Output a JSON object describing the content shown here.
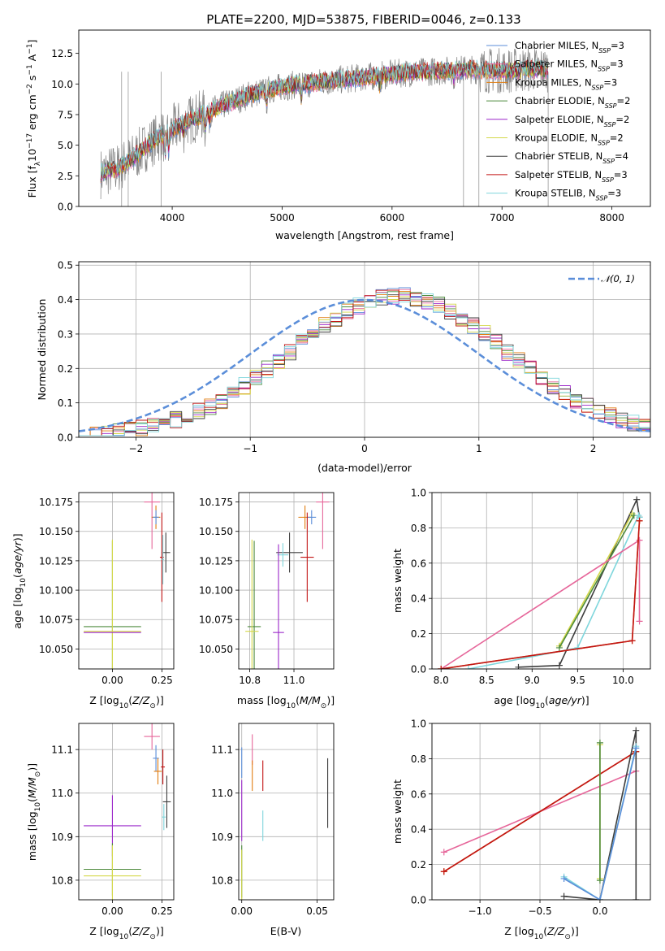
{
  "figure_title": "PLATE=2200, MJD=53875, FIBERID=0046, z=0.133",
  "colors": {
    "Chabrier MILES": "#5b8ed9",
    "Salpeter MILES": "#e6669a",
    "Kroupa MILES": "#e07d10",
    "Chabrier ELODIE": "#4d8a3c",
    "Salpeter ELODIE": "#9b27c9",
    "Kroupa ELODIE": "#d4d84a",
    "Chabrier STELIB": "#3d3d3d",
    "Salpeter STELIB": "#c21414",
    "Kroupa STELIB": "#7fd6dc",
    "data": "#808080",
    "normal": "#5b8ed9"
  },
  "chart_data": [
    {
      "id": "spectrum",
      "type": "line",
      "xlabel": "wavelength [Angstrom, rest frame]",
      "ylabel": "Flux [f_λ 10^-17 erg cm^-2 s^-1 A^-1]",
      "xlim": [
        3150,
        8350
      ],
      "ylim": [
        0,
        14.4
      ],
      "xticks": [
        4000,
        5000,
        6000,
        7000,
        8000
      ],
      "yticks": [
        0.0,
        2.5,
        5.0,
        7.5,
        10.0,
        12.5
      ],
      "grid": false,
      "legend_position": "right",
      "continuum_anchors": {
        "x": [
          3350,
          3500,
          3650,
          3800,
          3950,
          4100,
          4300,
          4500,
          4700,
          4900,
          5100,
          5300,
          5500,
          5700,
          5900,
          6100,
          6300,
          6500,
          6700,
          6900,
          7100,
          7300,
          7420
        ],
        "y": [
          2.7,
          3.1,
          4.0,
          5.2,
          6.0,
          6.8,
          7.6,
          8.4,
          9.1,
          9.6,
          9.9,
          10.1,
          10.3,
          10.5,
          10.7,
          10.9,
          11.0,
          11.1,
          11.2,
          11.1,
          11.1,
          11.2,
          11.2
        ]
      },
      "series": [
        {
          "name": "Chabrier MILES",
          "label": "Chabrier MILES, N_SSP=3"
        },
        {
          "name": "Salpeter MILES",
          "label": "Salpeter MILES, N_SSP=3"
        },
        {
          "name": "Kroupa MILES",
          "label": "Kroupa MILES, N_SSP=3"
        },
        {
          "name": "Chabrier ELODIE",
          "label": "Chabrier ELODIE, N_SSP=2"
        },
        {
          "name": "Salpeter ELODIE",
          "label": "Salpeter ELODIE, N_SSP=2"
        },
        {
          "name": "Kroupa ELODIE",
          "label": "Kroupa ELODIE, N_SSP=2"
        },
        {
          "name": "Chabrier STELIB",
          "label": "Chabrier STELIB, N_SSP=4"
        },
        {
          "name": "Salpeter STELIB",
          "label": "Salpeter STELIB, N_SSP=3"
        },
        {
          "name": "Kroupa STELIB",
          "label": "Kroupa STELIB, N_SSP=3"
        }
      ]
    },
    {
      "id": "residual_histogram",
      "type": "bar",
      "xlabel": "(data-model)/error",
      "ylabel": "Normed distribution",
      "xlim": [
        -2.5,
        2.5
      ],
      "ylim": [
        0,
        0.51
      ],
      "xticks": [
        -2,
        -1,
        0,
        1,
        2
      ],
      "yticks": [
        0.0,
        0.1,
        0.2,
        0.3,
        0.4,
        0.5
      ],
      "grid": true,
      "legend_position": "top-right",
      "normal_label": "𝒩(0, 1)",
      "bin_width": 0.1,
      "bin_start": -2.5
    },
    {
      "id": "age_vs_Z",
      "type": "scatter",
      "xlabel": "Z [log10(Z/Z⊙)]",
      "ylabel": "age  [log10(age/yr)]",
      "xlim": [
        -0.17,
        0.31
      ],
      "ylim": [
        10.033,
        10.183
      ],
      "xticks": [
        0.0,
        0.25
      ],
      "xticklabels": [
        "0.00",
        "0.25"
      ],
      "yticks": [
        10.05,
        10.075,
        10.1,
        10.125,
        10.15,
        10.175
      ],
      "grid": true,
      "points": [
        {
          "name": "Salpeter MILES",
          "x": 0.2,
          "y": 10.175,
          "xerr": 0.04,
          "yerr": 0.04
        },
        {
          "name": "Kroupa MILES",
          "x": 0.22,
          "y": 10.162,
          "xerr": 0.022,
          "yerr": 0.01
        },
        {
          "name": "Chabrier MILES",
          "x": 0.22,
          "y": 10.162,
          "xerr": 0.015,
          "yerr": 0.006
        },
        {
          "name": "Chabrier STELIB",
          "x": 0.27,
          "y": 10.132,
          "xerr": 0.022,
          "yerr": 0.017
        },
        {
          "name": "Salpeter STELIB",
          "x": 0.25,
          "y": 10.128,
          "xerr": 0.01,
          "yerr": 0.038
        },
        {
          "name": "Kroupa STELIB",
          "x": 0.255,
          "y": 10.126,
          "xerr": 0.005,
          "yerr": 0.021
        },
        {
          "name": "Chabrier ELODIE",
          "x": 0.0,
          "y": 10.069,
          "xerr": 0.145,
          "yerr": 0.073
        },
        {
          "name": "Kroupa ELODIE",
          "x": 0.0,
          "y": 10.065,
          "xerr": 0.145,
          "yerr": 0.078
        },
        {
          "name": "Salpeter ELODIE",
          "x": 0.0,
          "y": 10.064,
          "xerr": 0.145,
          "yerr": 0.0
        }
      ]
    },
    {
      "id": "age_vs_mass",
      "type": "scatter",
      "xlabel": "mass [log10(M/M⊙)]",
      "ylabel": "",
      "xlim": [
        10.75,
        11.18
      ],
      "ylim": [
        10.033,
        10.183
      ],
      "xticks": [
        10.8,
        11.0
      ],
      "yticks": [
        10.05,
        10.075,
        10.1,
        10.125,
        10.15,
        10.175
      ],
      "grid": true,
      "points": [
        {
          "name": "Salpeter MILES",
          "x": 11.13,
          "y": 10.175,
          "xerr": 0.03,
          "yerr": 0.04
        },
        {
          "name": "Kroupa MILES",
          "x": 11.05,
          "y": 10.162,
          "xerr": 0.03,
          "yerr": 0.01
        },
        {
          "name": "Chabrier MILES",
          "x": 11.08,
          "y": 10.162,
          "xerr": 0.02,
          "yerr": 0.006
        },
        {
          "name": "Chabrier STELIB",
          "x": 10.98,
          "y": 10.132,
          "xerr": 0.06,
          "yerr": 0.017
        },
        {
          "name": "Salpeter STELIB",
          "x": 11.06,
          "y": 10.128,
          "xerr": 0.03,
          "yerr": 0.038
        },
        {
          "name": "Kroupa STELIB",
          "x": 10.95,
          "y": 10.13,
          "xerr": 0.025,
          "yerr": 0.01
        },
        {
          "name": "Chabrier ELODIE",
          "x": 10.82,
          "y": 10.069,
          "xerr": 0.03,
          "yerr": 0.073
        },
        {
          "name": "Kroupa ELODIE",
          "x": 10.81,
          "y": 10.065,
          "xerr": 0.03,
          "yerr": 0.078
        },
        {
          "name": "Salpeter ELODIE",
          "x": 10.93,
          "y": 10.064,
          "xerr": 0.025,
          "yerr": 0.075
        }
      ]
    },
    {
      "id": "mass_weight_vs_age",
      "type": "line",
      "xlabel": "age  [log10(age/yr)]",
      "ylabel": "mass weight",
      "xlim": [
        7.9,
        10.3
      ],
      "ylim": [
        0,
        1.0
      ],
      "xticks": [
        8.0,
        8.5,
        9.0,
        9.5,
        10.0
      ],
      "yticks": [
        0.0,
        0.2,
        0.4,
        0.6,
        0.8,
        1.0
      ],
      "grid": true,
      "series": [
        {
          "name": "Chabrier STELIB",
          "x": [
            8.85,
            9.3,
            10.15,
            10.18
          ],
          "y": [
            0.01,
            0.02,
            0.96,
            0.86
          ]
        },
        {
          "name": "Kroupa ELODIE",
          "x": [
            9.3,
            10.1
          ],
          "y": [
            0.13,
            0.88
          ]
        },
        {
          "name": "Chabrier ELODIE",
          "x": [
            9.3,
            10.12
          ],
          "y": [
            0.12,
            0.87
          ]
        },
        {
          "name": "Kroupa STELIB",
          "x": [
            8.3,
            9.5,
            10.17,
            10.18
          ],
          "y": [
            0.0,
            0.12,
            0.87,
            0.86
          ]
        },
        {
          "name": "Salpeter MILES",
          "x": [
            8.0,
            10.18,
            10.18
          ],
          "y": [
            0.0,
            0.73,
            0.27
          ]
        },
        {
          "name": "Kroupa MILES",
          "x": [
            8.0,
            10.1,
            10.18
          ],
          "y": [
            0.0,
            0.16,
            0.84
          ]
        },
        {
          "name": "Salpeter STELIB",
          "x": [
            8.0,
            10.1,
            10.18
          ],
          "y": [
            0.0,
            0.16,
            0.84
          ]
        }
      ]
    },
    {
      "id": "mass_vs_Z",
      "type": "scatter",
      "xlabel": "Z [log10(Z/Z⊙)]",
      "ylabel": "mass [log10(M/M⊙)]",
      "xlim": [
        -0.17,
        0.31
      ],
      "ylim": [
        10.755,
        11.16
      ],
      "xticks": [
        0.0,
        0.25
      ],
      "xticklabels": [
        "0.00",
        "0.25"
      ],
      "yticks": [
        10.8,
        10.9,
        11.0,
        11.1
      ],
      "grid": true,
      "points": [
        {
          "name": "Salpeter MILES",
          "x": 0.2,
          "y": 11.13,
          "xerr": 0.04,
          "yerr": 0.03
        },
        {
          "name": "Chabrier MILES",
          "x": 0.22,
          "y": 11.08,
          "xerr": 0.015,
          "yerr": 0.03
        },
        {
          "name": "Kroupa MILES",
          "x": 0.23,
          "y": 11.05,
          "xerr": 0.02,
          "yerr": 0.03
        },
        {
          "name": "Salpeter STELIB",
          "x": 0.255,
          "y": 11.06,
          "xerr": 0.01,
          "yerr": 0.04
        },
        {
          "name": "Chabrier STELIB",
          "x": 0.275,
          "y": 10.98,
          "xerr": 0.02,
          "yerr": 0.06
        },
        {
          "name": "Kroupa STELIB",
          "x": 0.26,
          "y": 10.945,
          "xerr": 0.01,
          "yerr": 0.03
        },
        {
          "name": "Salpeter ELODIE",
          "x": 0.0,
          "y": 10.925,
          "xerr": 0.145,
          "yerr": 0.07
        },
        {
          "name": "Chabrier ELODIE",
          "x": 0.0,
          "y": 10.825,
          "xerr": 0.145,
          "yerr": 0.06
        },
        {
          "name": "Kroupa ELODIE",
          "x": 0.0,
          "y": 10.81,
          "xerr": 0.145,
          "yerr": 0.07
        }
      ]
    },
    {
      "id": "mass_vs_EBV",
      "type": "scatter",
      "xlabel": "E(B-V)",
      "ylabel": "",
      "xlim": [
        -0.002,
        0.061
      ],
      "ylim": [
        10.755,
        11.16
      ],
      "xticks": [
        0.0,
        0.05
      ],
      "xticklabels": [
        "0.00",
        "0.05"
      ],
      "yticks": [
        10.8,
        10.9,
        11.0,
        11.1
      ],
      "grid": true,
      "points": [
        {
          "name": "Chabrier MILES",
          "x": 0.0,
          "y": 11.07,
          "xerr": 0,
          "yerr": 0.035
        },
        {
          "name": "Salpeter MILES",
          "x": 0.007,
          "y": 11.1,
          "xerr": 0,
          "yerr": 0.035
        },
        {
          "name": "Kroupa MILES",
          "x": 0.007,
          "y": 11.04,
          "xerr": 0,
          "yerr": 0.035
        },
        {
          "name": "Salpeter STELIB",
          "x": 0.014,
          "y": 11.04,
          "xerr": 0,
          "yerr": 0.035
        },
        {
          "name": "Kroupa STELIB",
          "x": 0.014,
          "y": 10.925,
          "xerr": 0,
          "yerr": 0.035
        },
        {
          "name": "Salpeter ELODIE",
          "x": 0.0,
          "y": 10.96,
          "xerr": 0,
          "yerr": 0.07
        },
        {
          "name": "Chabrier ELODIE",
          "x": 0.0,
          "y": 10.82,
          "xerr": 0,
          "yerr": 0.06
        },
        {
          "name": "Kroupa ELODIE",
          "x": 0.0,
          "y": 10.81,
          "xerr": 0,
          "yerr": 0.06
        },
        {
          "name": "Chabrier STELIB",
          "x": 0.057,
          "y": 11.0,
          "xerr": 0,
          "yerr": 0.08
        }
      ]
    },
    {
      "id": "mass_weight_vs_Z",
      "type": "line",
      "xlabel": "Z [log10(Z/Z⊙)]",
      "ylabel": "mass weight",
      "xlim": [
        -1.4,
        0.42
      ],
      "ylim": [
        0,
        1.0
      ],
      "xticks": [
        -1.0,
        -0.5,
        0.0
      ],
      "yticks": [
        0.0,
        0.2,
        0.4,
        0.6,
        0.8,
        1.0
      ],
      "grid": true,
      "series": [
        {
          "name": "Salpeter MILES",
          "x": [
            -1.3,
            0.3
          ],
          "y": [
            0.27,
            0.73
          ]
        },
        {
          "name": "Kroupa MILES",
          "x": [
            -1.3,
            0.3
          ],
          "y": [
            0.16,
            0.84
          ]
        },
        {
          "name": "Salpeter STELIB",
          "x": [
            -1.3,
            0.3
          ],
          "y": [
            0.16,
            0.84
          ]
        },
        {
          "name": "Kroupa ELODIE",
          "x": [
            0.0,
            0.0
          ],
          "y": [
            0.12,
            0.88
          ]
        },
        {
          "name": "Chabrier ELODIE",
          "x": [
            0.0,
            0.0
          ],
          "y": [
            0.11,
            0.89
          ]
        },
        {
          "name": "Chabrier STELIB",
          "x": [
            -0.3,
            0.0,
            0.3,
            0.3
          ],
          "y": [
            0.02,
            0.0,
            0.96,
            0.0
          ]
        },
        {
          "name": "Kroupa STELIB",
          "x": [
            -0.3,
            0.0,
            0.3,
            0.3
          ],
          "y": [
            0.13,
            0.0,
            0.87,
            0.86
          ]
        },
        {
          "name": "Chabrier MILES",
          "x": [
            -0.3,
            0.0,
            0.3
          ],
          "y": [
            0.12,
            0.0,
            0.86
          ]
        }
      ]
    }
  ]
}
